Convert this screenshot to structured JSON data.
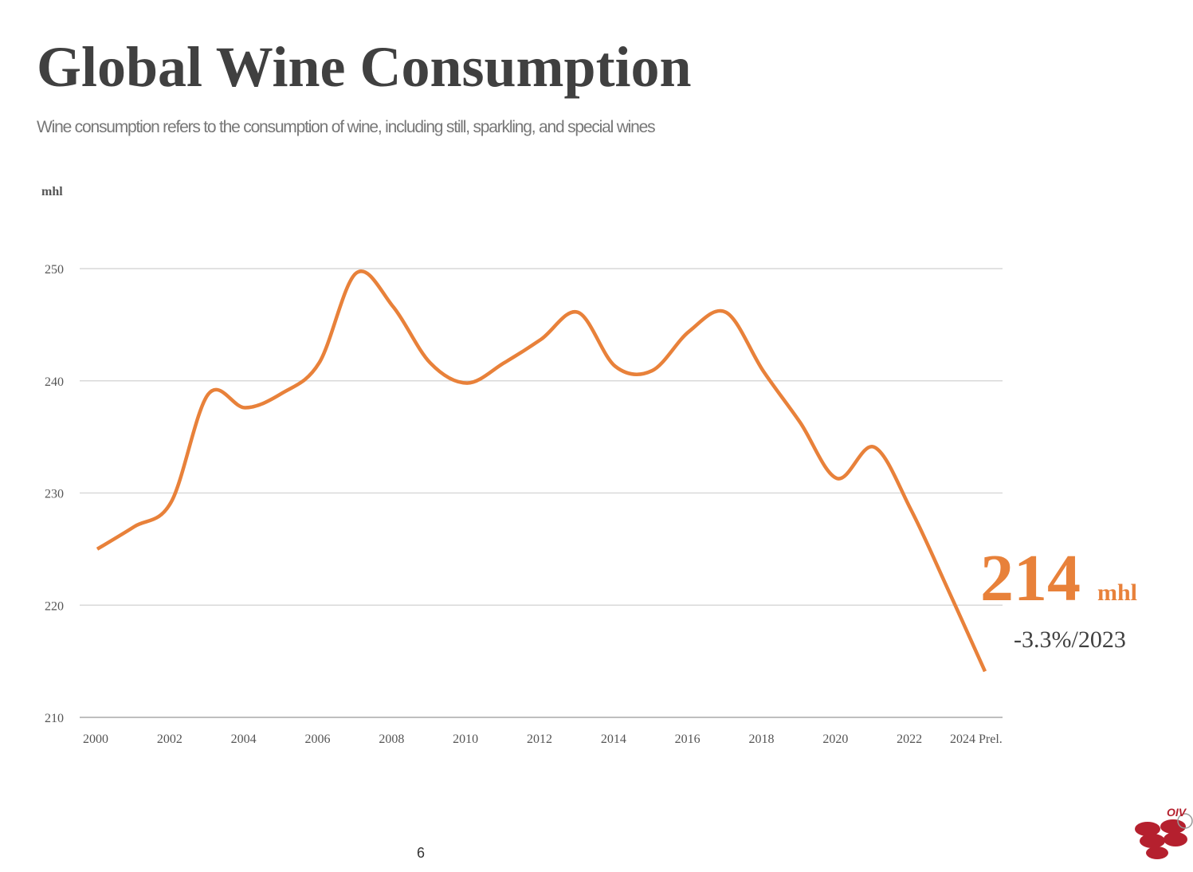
{
  "chart_data": {
    "type": "line",
    "title": "Global Wine Consumption",
    "subtitle": "Wine consumption refers to the consumption of wine, including still, sparkling, and special wines",
    "y_axis_label": "mhl",
    "categories": [
      "2000",
      null,
      "2002",
      null,
      "2004",
      null,
      "2006",
      null,
      "2008",
      null,
      "2010",
      null,
      "2012",
      null,
      "2014",
      null,
      "2016",
      null,
      "2018",
      null,
      "2020",
      null,
      "2022",
      null,
      "2024 Prel."
    ],
    "series": [
      {
        "name": "Wine consumption",
        "color": "#e8813a",
        "values": [
          225.0,
          227.0,
          229.2,
          238.8,
          237.6,
          238.9,
          241.6,
          249.6,
          246.6,
          241.6,
          239.8,
          241.6,
          243.7,
          246.1,
          241.3,
          240.9,
          244.4,
          246.1,
          240.9,
          236.3,
          231.3,
          234.1,
          228.5,
          221.4,
          214.1
        ]
      }
    ],
    "ylim": [
      210,
      250
    ],
    "yticks": [
      210,
      220,
      230,
      240,
      250
    ],
    "grid": true,
    "annotations": {
      "value": "214",
      "unit": "mhl",
      "change": "-3.3%/2023"
    },
    "page_number": "6",
    "logo": "OIV"
  }
}
